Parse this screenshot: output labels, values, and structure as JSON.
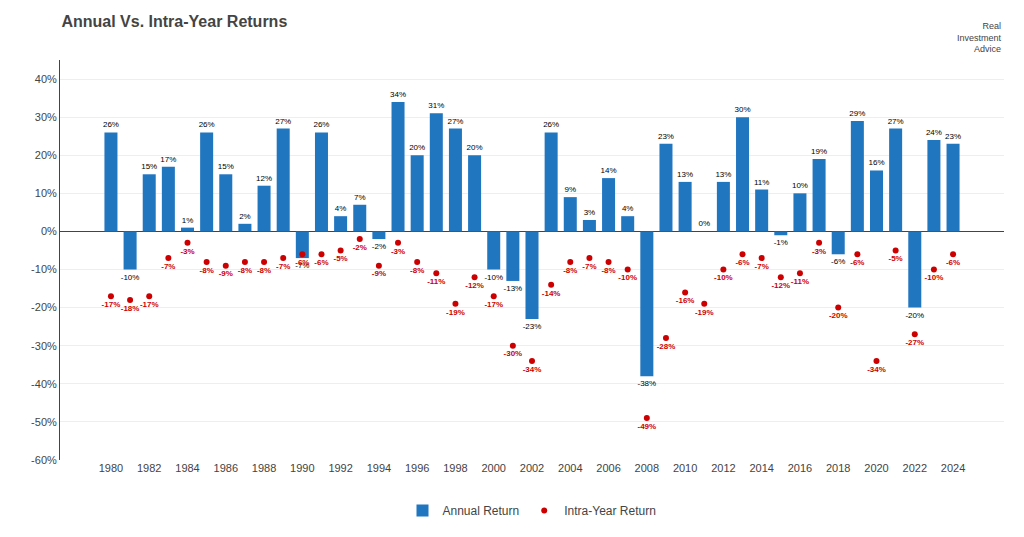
{
  "chart_data": {
    "type": "bar",
    "title": "Annual Vs. Intra-Year Returns",
    "annotations": [
      "Real\nInvestment\nAdvice"
    ],
    "categories": [
      "1980",
      null,
      "1982",
      null,
      "1984",
      null,
      "1986",
      null,
      "1988",
      null,
      "1990",
      null,
      "1992",
      null,
      "1994",
      null,
      "1996",
      null,
      "1998",
      null,
      "2000",
      null,
      "2002",
      null,
      "2004",
      null,
      "2006",
      null,
      "2008",
      null,
      "2010",
      null,
      "2012",
      null,
      "2014",
      null,
      "2016",
      null,
      "2018",
      null,
      "2020",
      null,
      "2022",
      null,
      "2024"
    ],
    "series": [
      {
        "name": "Annual Return",
        "type": "bar",
        "color": "#2176c0",
        "values": [
          26,
          -10,
          15,
          17,
          1,
          26,
          15,
          2,
          12,
          27,
          -7,
          26,
          4,
          7,
          -2,
          34,
          20,
          31,
          27,
          20,
          -10,
          -13,
          -23,
          26,
          9,
          3,
          14,
          4,
          -38,
          23,
          13,
          0,
          13,
          30,
          11,
          -1,
          10,
          19,
          -6,
          29,
          16,
          27,
          -20,
          24,
          23
        ],
        "value_labels": [
          "26%",
          "-10%",
          "15%",
          "17%",
          "1%",
          "26%",
          "15%",
          "2%",
          "12%",
          "27%",
          "-7%",
          "26%",
          "4%",
          "7%",
          "-2%",
          "34%",
          "20%",
          "31%",
          "27%",
          "20%",
          "-10%",
          "-13%",
          "-23%",
          "26%",
          "9%",
          "3%",
          "14%",
          "4%",
          "-38%",
          "23%",
          "13%",
          "0%",
          "13%",
          "30%",
          "11%",
          "-1%",
          "10%",
          "19%",
          "-6%",
          "29%",
          "16%",
          "27%",
          "-20%",
          "24%",
          "23%"
        ]
      },
      {
        "name": "Intra-Year Return",
        "type": "scatter",
        "marker": "circle",
        "color": "#cc0000",
        "values": [
          -17,
          -18,
          -17,
          -7,
          -3,
          -8,
          -9,
          -8,
          -8,
          -7,
          -6,
          -6,
          -5,
          -2,
          -9,
          -3,
          -8,
          -11,
          -19,
          -12,
          -17,
          -30,
          -34,
          -14,
          -8,
          -7,
          -8,
          -10,
          -49,
          -28,
          -16,
          -19,
          -10,
          -6,
          -7,
          -12,
          -11,
          -3,
          -20,
          -6,
          -34,
          -5,
          -27,
          -10,
          -6
        ],
        "value_labels": [
          "-17%",
          "-18%",
          "-17%",
          "-7%",
          "-3%",
          "-8%",
          "-9%",
          "-8%",
          "-8%",
          "-7%",
          "-6%",
          "-6%",
          "-5%",
          "-2%",
          "-9%",
          "-3%",
          "-8%",
          "-11%",
          "-19%",
          "-12%",
          "-17%",
          "-30%",
          "-34%",
          "-14%",
          "-8%",
          "-7%",
          "-8%",
          "-10%",
          "-49%",
          "-28%",
          "-16%",
          "-19%",
          "-10%",
          "-6%",
          "-7%",
          "-12%",
          "-11%",
          "-3%",
          "-20%",
          "-6%",
          "-34%",
          "-5%",
          "-27%",
          "-10%",
          "-6%"
        ]
      }
    ],
    "ylim": [
      -60,
      45
    ],
    "yticks": [
      {
        "value": -60,
        "label": "-60%"
      },
      {
        "value": -50,
        "label": "-50%"
      },
      {
        "value": -40,
        "label": "-40%"
      },
      {
        "value": -30,
        "label": "-30%"
      },
      {
        "value": -20,
        "label": "-20%"
      },
      {
        "value": -10,
        "label": "-10%"
      },
      {
        "value": 0,
        "label": "0%"
      },
      {
        "value": 10,
        "label": "10%"
      },
      {
        "value": 20,
        "label": "20%"
      },
      {
        "value": 30,
        "label": "30%"
      },
      {
        "value": 40,
        "label": "40%"
      }
    ],
    "grid": true,
    "legend": "bottom",
    "data_labels": true
  }
}
